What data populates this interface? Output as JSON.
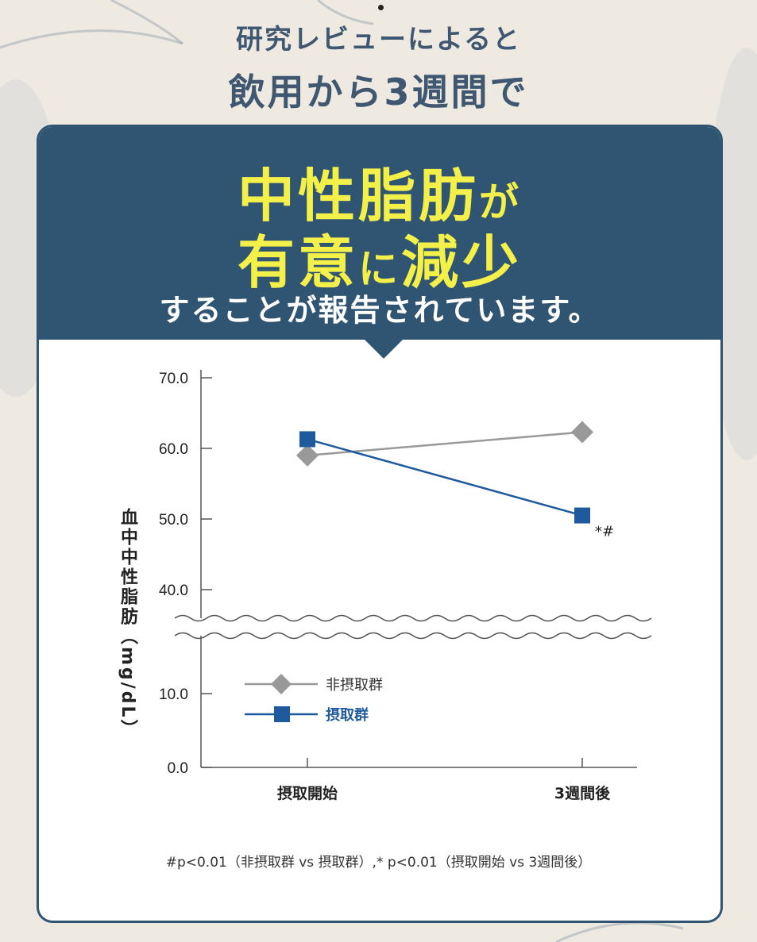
{
  "intro": {
    "line1": "研究レビューによると",
    "line2": "飲用から3週間で"
  },
  "headline": {
    "line1_big": "中性脂肪",
    "line1_small": "が",
    "line2_big_a": "有意",
    "line2_small": "に",
    "line2_big_b": "減少",
    "sub": "することが報告されています。"
  },
  "colors": {
    "banner": "#2f5573",
    "headline": "#f4f04a",
    "series_control": "#999999",
    "series_intake": "#1f5a9e"
  },
  "chart_data": {
    "type": "line",
    "categories": [
      "摂取開始",
      "3週間後"
    ],
    "series": [
      {
        "name": "非摂取群",
        "marker": "diamond",
        "values": [
          59.0,
          62.3
        ]
      },
      {
        "name": "摂取群",
        "marker": "square",
        "values": [
          61.3,
          50.5
        ]
      }
    ],
    "ylabel": "血中中性脂肪（mg/dL）",
    "yticks": [
      "70.0",
      "60.0",
      "50.0",
      "40.0",
      "10.0",
      "0.0"
    ],
    "ylim": [
      0,
      70
    ],
    "axis_break": [
      12,
      37
    ],
    "annotation": "*#",
    "legend_placement": "bottom-left inside plot"
  },
  "footnote": "#p<0.01（非摂取群 vs 摂取群）,* p<0.01（摂取開始 vs 3週間後）"
}
